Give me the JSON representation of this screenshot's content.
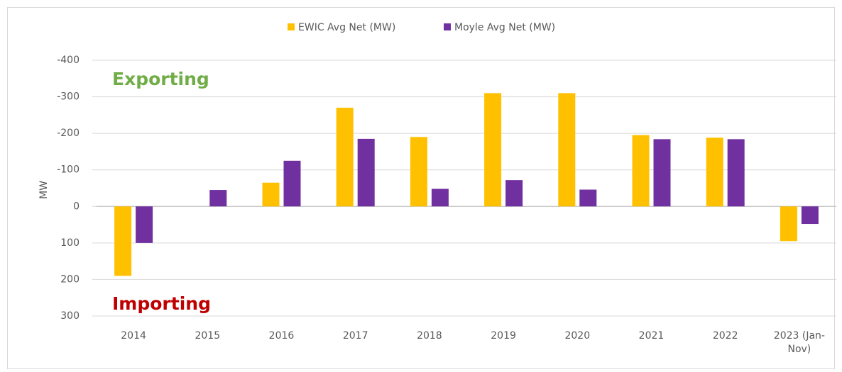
{
  "chart_data": {
    "type": "bar",
    "annotations": [
      {
        "text": "Exporting",
        "color": "#70ad47"
      },
      {
        "text": "Importing",
        "color": "#c00000"
      }
    ],
    "ylabel": "MW",
    "categories": [
      "2014",
      "2015",
      "2016",
      "2017",
      "2018",
      "2019",
      "2020",
      "2021",
      "2022",
      "2023 (Jan-Nov)"
    ],
    "series": [
      {
        "name": "EWIC Avg Net (MW)",
        "color": "#ffc000",
        "values": [
          190,
          0,
          -65,
          -270,
          -190,
          -310,
          -310,
          -195,
          -188,
          95
        ]
      },
      {
        "name": "Moyle Avg Net (MW)",
        "color": "#7030a0",
        "values": [
          100,
          -45,
          -125,
          -185,
          -48,
          -72,
          -46,
          -184,
          -184,
          48
        ]
      }
    ],
    "ylim": [
      -400,
      300
    ],
    "y_inverted": true,
    "yticks": [
      -400,
      -300,
      -200,
      -100,
      0,
      100,
      200,
      300
    ],
    "grid": true
  }
}
